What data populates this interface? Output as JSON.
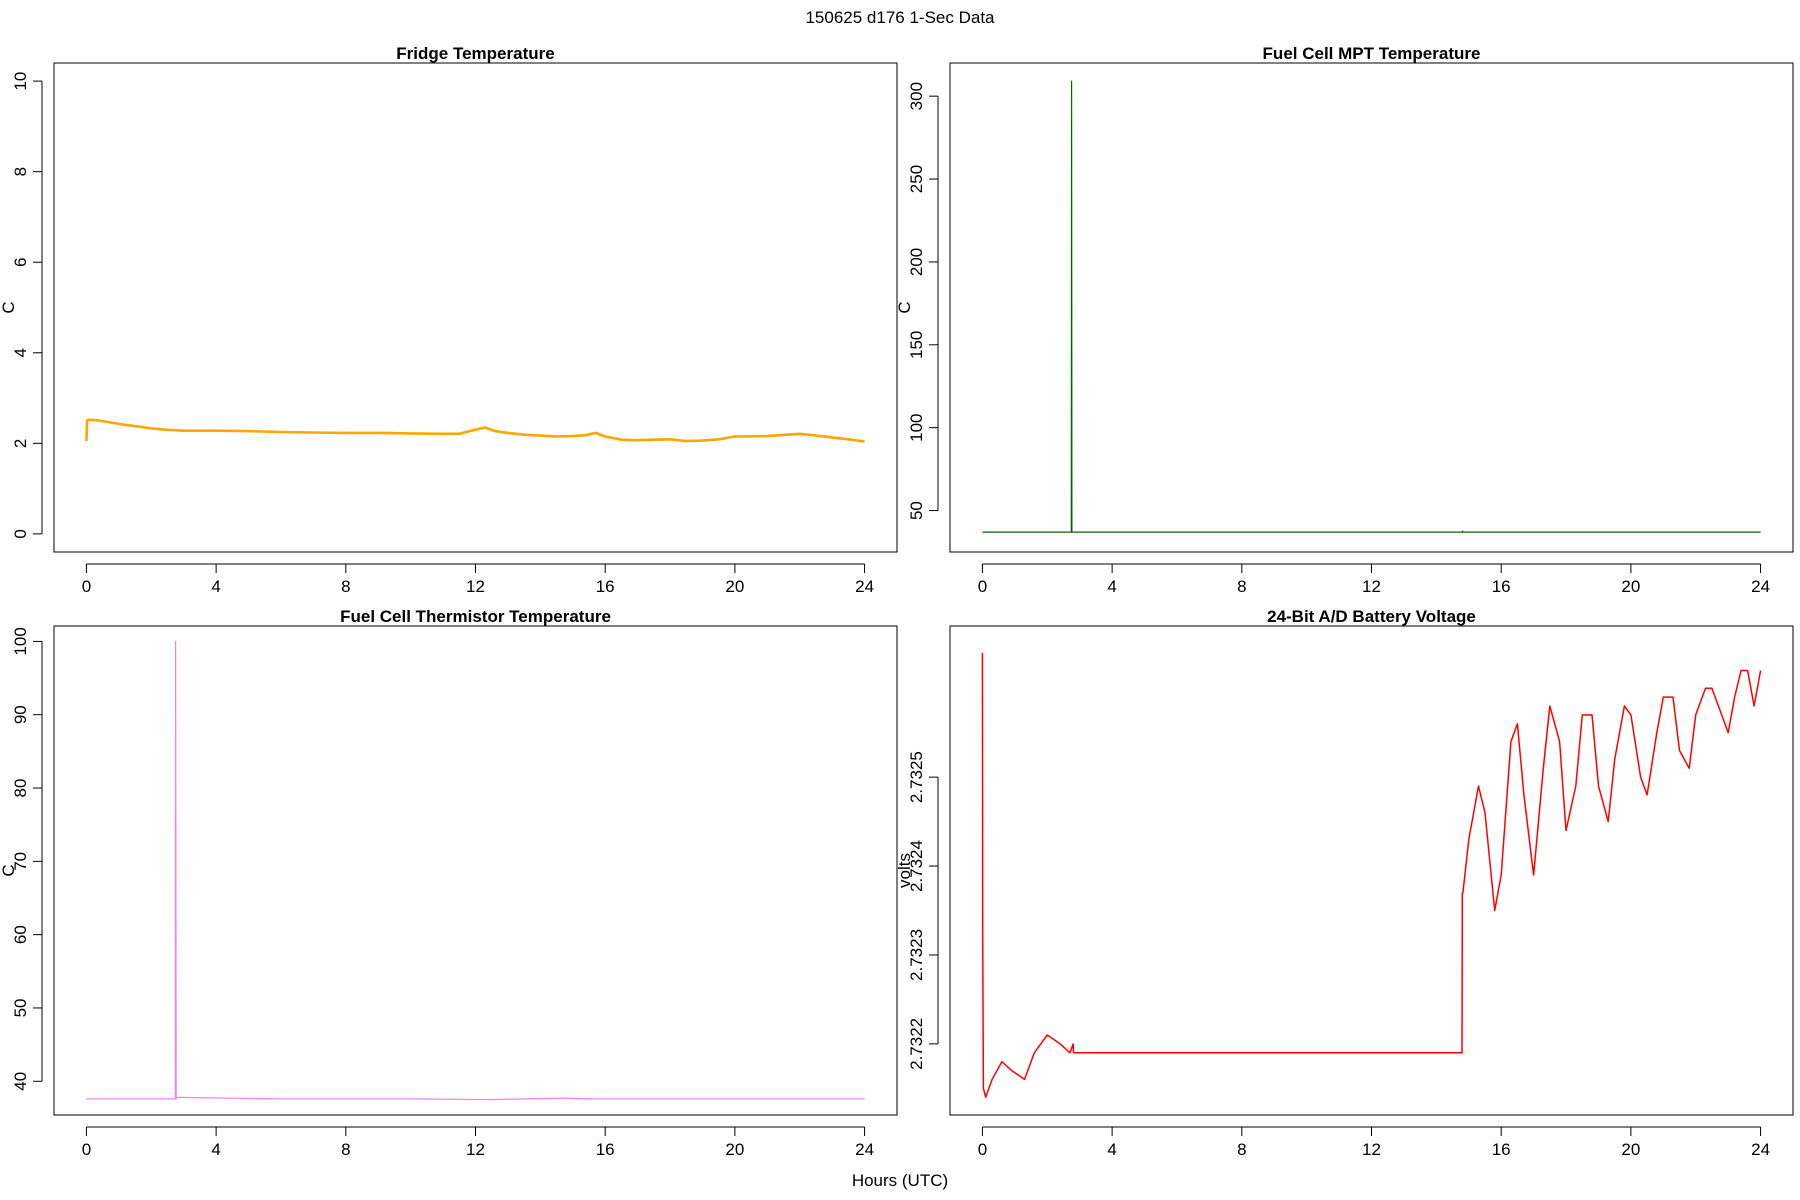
{
  "figure": {
    "title": "150625   d176   1-Sec Data",
    "xlabel": "Hours (UTC)"
  },
  "chart_data": [
    {
      "type": "line",
      "title": "Fridge Temperature",
      "xlabel": "",
      "ylabel": "C",
      "xlim": [
        -1,
        25
      ],
      "ylim": [
        -0.4,
        10.4
      ],
      "xticks": [
        0,
        4,
        8,
        12,
        16,
        20,
        24
      ],
      "yticks": [
        0,
        2,
        4,
        6,
        8,
        10
      ],
      "ytick_labels": [
        "0",
        "2",
        "4",
        "6",
        "8",
        "10"
      ],
      "grid": false,
      "color": "#FFA500",
      "stroke": 2.6,
      "series": [
        {
          "x": [
            0,
            0.02,
            0.05,
            0.3,
            0.6,
            1.0,
            1.5,
            2.0,
            2.5,
            3.0,
            4.0,
            5.0,
            6.0,
            7.0,
            8.0,
            9.0,
            10.0,
            11.0,
            11.5,
            12.0,
            12.3,
            12.6,
            13.0,
            13.5,
            14.0,
            14.5,
            15.0,
            15.4,
            15.7,
            16.0,
            16.5,
            17.0,
            17.5,
            18.0,
            18.5,
            19.0,
            19.5,
            20.0,
            21.0,
            22.0,
            22.5,
            23.0,
            23.5,
            24.0
          ],
          "y": [
            2.05,
            2.5,
            2.52,
            2.51,
            2.48,
            2.43,
            2.38,
            2.33,
            2.3,
            2.28,
            2.28,
            2.27,
            2.25,
            2.24,
            2.23,
            2.23,
            2.22,
            2.21,
            2.21,
            2.3,
            2.35,
            2.27,
            2.23,
            2.19,
            2.17,
            2.15,
            2.16,
            2.18,
            2.23,
            2.15,
            2.08,
            2.07,
            2.08,
            2.09,
            2.05,
            2.06,
            2.09,
            2.15,
            2.16,
            2.21,
            2.17,
            2.13,
            2.09,
            2.04
          ]
        }
      ]
    },
    {
      "type": "line",
      "title": "Fuel Cell MPT Temperature",
      "xlabel": "",
      "ylabel": "C",
      "xlim": [
        -1,
        25
      ],
      "ylim": [
        25,
        320
      ],
      "xticks": [
        0,
        4,
        8,
        12,
        16,
        20,
        24
      ],
      "yticks": [
        50,
        100,
        150,
        200,
        250,
        300
      ],
      "ytick_labels": [
        "50",
        "100",
        "150",
        "200",
        "250",
        "300"
      ],
      "grid": false,
      "color": "#006400",
      "stroke": 1.2,
      "series": [
        {
          "x": [
            0,
            2.74,
            2.75,
            2.76,
            2.78,
            14.8,
            14.81,
            14.82,
            24
          ],
          "y": [
            37,
            37,
            309,
            37,
            37,
            37,
            37.6,
            37,
            37
          ]
        }
      ]
    },
    {
      "type": "line",
      "title": "Fuel Cell Thermistor Temperature",
      "xlabel": "",
      "ylabel": "C",
      "xlim": [
        -1,
        25
      ],
      "ylim": [
        35.4,
        102.1
      ],
      "xticks": [
        0,
        4,
        8,
        12,
        16,
        20,
        24
      ],
      "yticks": [
        40,
        50,
        60,
        70,
        80,
        90,
        100
      ],
      "ytick_labels": [
        "40",
        "50",
        "60",
        "70",
        "80",
        "90",
        "100"
      ],
      "grid": false,
      "color": "#EE82EE",
      "stroke": 1.2,
      "series": [
        {
          "x": [
            0,
            2.74,
            2.75,
            2.77,
            2.8,
            6,
            10,
            12.5,
            14.8,
            15.5,
            17,
            20,
            24
          ],
          "y": [
            37.6,
            37.6,
            100,
            37.6,
            37.8,
            37.6,
            37.6,
            37.5,
            37.7,
            37.6,
            37.6,
            37.6,
            37.6
          ]
        }
      ]
    },
    {
      "type": "line",
      "title": "24-Bit A/D Battery Voltage",
      "xlabel": "",
      "ylabel": "volts",
      "xlim": [
        -1,
        25
      ],
      "ylim": [
        2.73212,
        2.73267
      ],
      "xticks": [
        0,
        4,
        8,
        12,
        16,
        20,
        24
      ],
      "yticks": [
        2.7322,
        2.7323,
        2.7324,
        2.7325
      ],
      "ytick_labels": [
        "2.7322",
        "2.7323",
        "2.7324",
        "2.7325"
      ],
      "grid": false,
      "color": "#FF0000",
      "stroke": 1.5,
      "series": [
        {
          "x": [
            0,
            0.01,
            0.03,
            0.1,
            0.3,
            0.6,
            0.9,
            1.3,
            1.6,
            2.0,
            2.4,
            2.7,
            2.8,
            2.81,
            2.83,
            6,
            10,
            14.79,
            14.8,
            14.82,
            15.0,
            15.3,
            15.5,
            15.8,
            16.0,
            16.3,
            16.5,
            16.7,
            17.0,
            17.3,
            17.5,
            17.8,
            18.0,
            18.3,
            18.5,
            18.8,
            19.0,
            19.3,
            19.5,
            19.8,
            20.0,
            20.3,
            20.5,
            20.8,
            21.0,
            21.3,
            21.5,
            21.8,
            22.0,
            22.3,
            22.5,
            22.8,
            23.0,
            23.2,
            23.4,
            23.6,
            23.8,
            24.0
          ],
          "y": [
            2.73264,
            2.73232,
            2.73215,
            2.73214,
            2.73216,
            2.73218,
            2.73217,
            2.73216,
            2.73219,
            2.73221,
            2.7322,
            2.73219,
            2.7322,
            2.73219,
            2.73219,
            2.73219,
            2.73219,
            2.73219,
            2.73237,
            2.73237,
            2.73243,
            2.73249,
            2.73246,
            2.73235,
            2.73239,
            2.73254,
            2.73256,
            2.73248,
            2.73239,
            2.73251,
            2.73258,
            2.73254,
            2.73244,
            2.73249,
            2.73257,
            2.73257,
            2.73249,
            2.73245,
            2.73252,
            2.73258,
            2.73257,
            2.7325,
            2.73248,
            2.73255,
            2.73259,
            2.73259,
            2.73253,
            2.73251,
            2.73257,
            2.7326,
            2.7326,
            2.73257,
            2.73255,
            2.73259,
            2.73262,
            2.73262,
            2.73258,
            2.73262
          ]
        }
      ]
    }
  ]
}
